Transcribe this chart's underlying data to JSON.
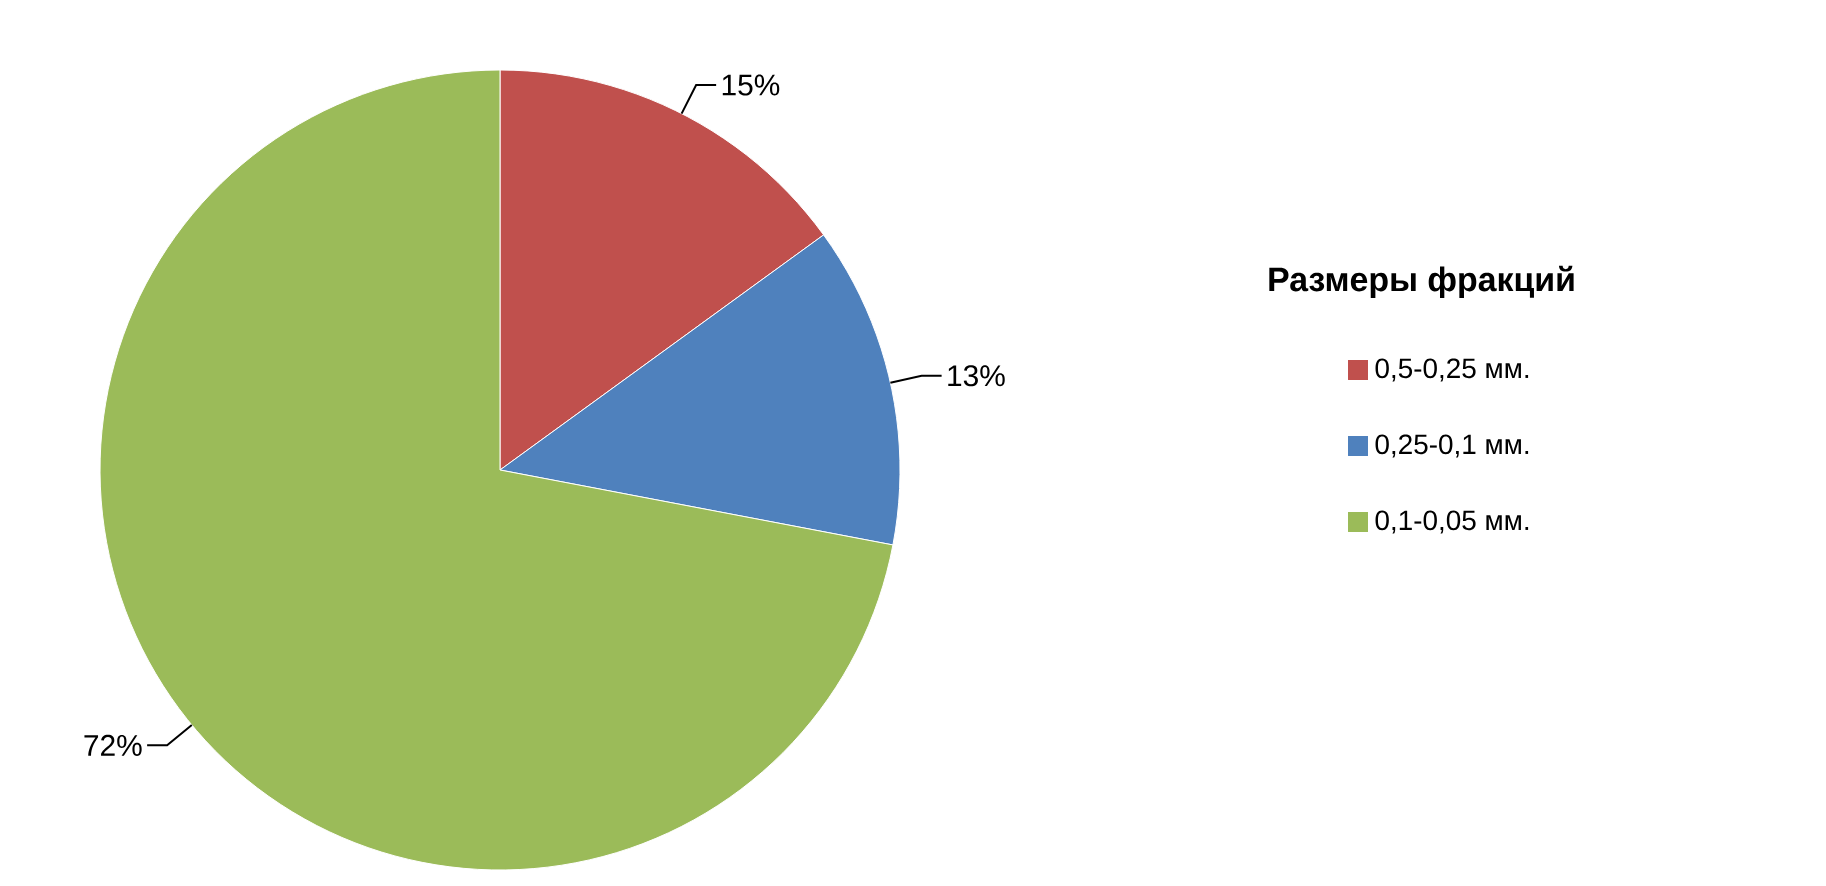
{
  "chart_data": {
    "type": "pie",
    "legend_title": "Размеры фракций",
    "legend": "right",
    "categories": [
      "0,5-0,25 мм.",
      "0,25-0,1 мм.",
      "0,1-0,05 мм."
    ],
    "values": [
      15,
      13,
      72
    ],
    "value_labels": [
      "15%",
      "13%",
      "72%"
    ],
    "colors": [
      "#c0504d",
      "#4f81bd",
      "#9bbb59"
    ]
  }
}
